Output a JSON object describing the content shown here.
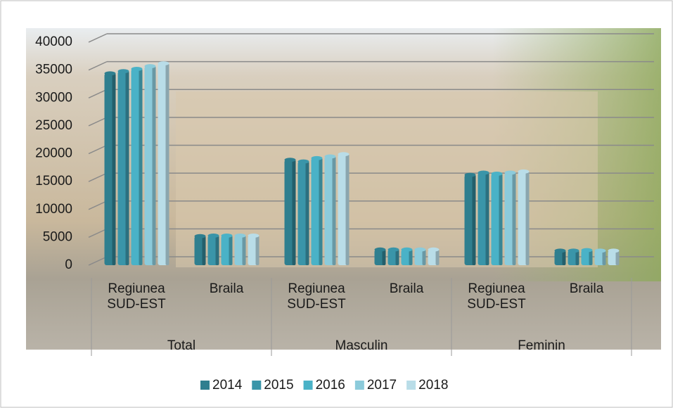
{
  "chart_data": {
    "type": "bar3d",
    "groups": [
      "Total",
      "Masculin",
      "Feminin"
    ],
    "categories": [
      "Regiunea SUD-EST",
      "Braila",
      "Regiunea SUD-EST",
      "Braila",
      "Regiunea SUD-EST",
      "Braila"
    ],
    "series": [
      {
        "name": "2014",
        "color": "#2f7f8f",
        "values": [
          34400,
          5200,
          18900,
          2800,
          16200,
          2600
        ]
      },
      {
        "name": "2015",
        "color": "#3a95a9",
        "values": [
          34800,
          5300,
          18600,
          2800,
          16600,
          2600
        ]
      },
      {
        "name": "2016",
        "color": "#4ab2c7",
        "values": [
          35200,
          5300,
          19200,
          2800,
          16400,
          2700
        ]
      },
      {
        "name": "2017",
        "color": "#8ccbdb",
        "values": [
          35700,
          5300,
          19500,
          2800,
          16600,
          2600
        ]
      },
      {
        "name": "2018",
        "color": "#b9dde8",
        "values": [
          36200,
          5300,
          19900,
          2800,
          16800,
          2600
        ]
      }
    ],
    "ylim": [
      0,
      40000
    ],
    "yticks": [
      0,
      5000,
      10000,
      15000,
      20000,
      25000,
      30000,
      35000,
      40000
    ],
    "grid": true
  }
}
